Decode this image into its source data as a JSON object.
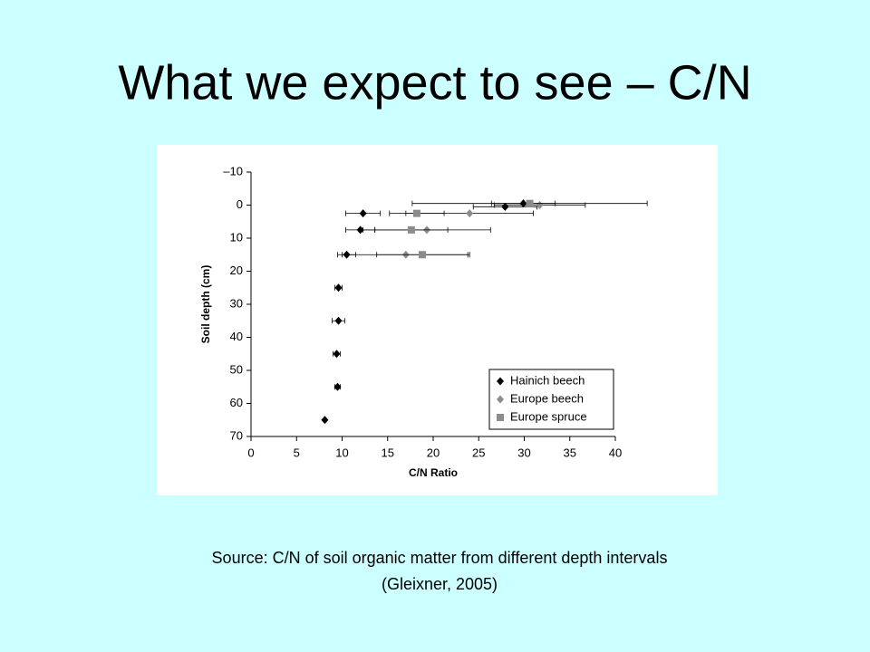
{
  "title": "What we expect to see – C/N",
  "caption": [
    "Source: C/N of soil organic matter from different depth intervals",
    "(Gleixner, 2005)"
  ],
  "chart_data": {
    "type": "scatter",
    "x_label": "C/N Ratio",
    "y_label": "Soil depth (cm)",
    "xlim": [
      0,
      40
    ],
    "xticks": [
      0,
      5,
      10,
      15,
      20,
      25,
      30,
      35,
      40
    ],
    "ylim": [
      -10,
      70
    ],
    "y_inverted": true,
    "yticks": [
      {
        "value": -10,
        "label": "–10"
      },
      0,
      10,
      20,
      30,
      40,
      50,
      60,
      70
    ],
    "legend": "lower right",
    "series": [
      {
        "name": "Hainich beech",
        "color": "#000000",
        "marker": "diamond",
        "x": [
          29.9,
          27.9,
          12.3,
          12.0,
          10.5,
          9.6,
          9.6,
          9.4,
          9.5,
          8.1
        ],
        "values": [
          -0.5,
          0.5,
          2.5,
          7.5,
          15,
          25,
          35,
          45,
          55,
          65
        ],
        "xerr": [
          3.5,
          3.5,
          1.9,
          1.6,
          1.0,
          0.4,
          0.7,
          0.4,
          0.3,
          null
        ]
      },
      {
        "name": "Europe beech",
        "color": "#8c8c8c",
        "marker": "diamond",
        "x": [
          31.7,
          24.0,
          19.3,
          17.0
        ],
        "values": [
          0,
          2.5,
          7.5,
          15
        ],
        "xerr": [
          5,
          7,
          7,
          7
        ]
      },
      {
        "name": "Europe spruce",
        "color": "#8c8c8c",
        "marker": "square",
        "x": [
          30.6,
          18.2,
          17.6,
          18.8
        ],
        "values": [
          -0.5,
          2.5,
          7.5,
          15
        ],
        "xerr": [
          12.9,
          3,
          4,
          5
        ]
      }
    ]
  }
}
